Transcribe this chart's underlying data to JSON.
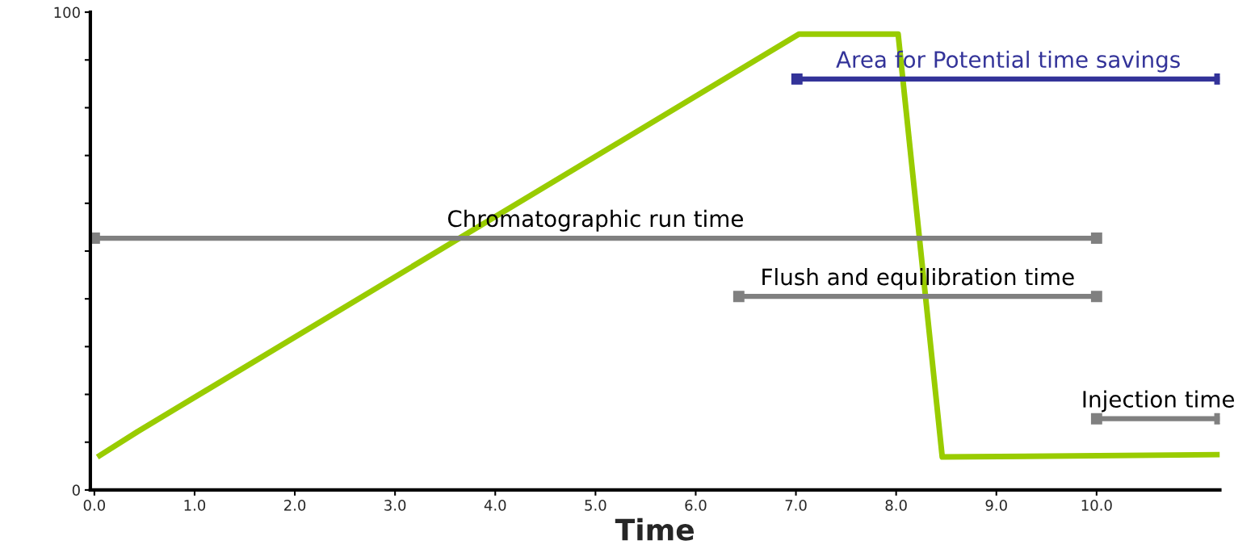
{
  "chart_data": {
    "type": "line",
    "xlabel": "Time",
    "xlim": [
      -0.04,
      11.23
    ],
    "ylim": [
      0,
      100
    ],
    "xticks": [
      {
        "value": 0,
        "label": "0.0"
      },
      {
        "value": 1,
        "label": "1.0"
      },
      {
        "value": 2,
        "label": "2.0"
      },
      {
        "value": 3,
        "label": "3.0"
      },
      {
        "value": 4,
        "label": "4.0"
      },
      {
        "value": 5,
        "label": "5.0"
      },
      {
        "value": 6,
        "label": "6.0"
      },
      {
        "value": 7,
        "label": "7.0"
      },
      {
        "value": 8,
        "label": "8.0"
      },
      {
        "value": 9,
        "label": "9.0"
      },
      {
        "value": 10,
        "label": "10.0"
      }
    ],
    "yticks": [
      0,
      {
        "value": 10,
        "label": null
      },
      {
        "value": 20,
        "label": null
      },
      {
        "value": 30,
        "label": null
      },
      {
        "value": 40,
        "label": null
      },
      {
        "value": 50,
        "label": null
      },
      {
        "value": 60,
        "label": null
      },
      {
        "value": 70,
        "label": null
      },
      {
        "value": 80,
        "label": null
      },
      {
        "value": 90,
        "label": null
      },
      100
    ],
    "grid": false,
    "legend": false,
    "series": [
      {
        "color": "#99cc00",
        "x": [
          0.03,
          0.43,
          7.03,
          8.02,
          8.46,
          11.23
        ],
        "values": [
          6.9,
          12.2,
          95.4,
          95.4,
          6.9,
          7.4
        ],
        "marker": "none"
      },
      {
        "name": "Chromatographic run time",
        "color": "#808080",
        "x": [
          0,
          10
        ],
        "values": [
          52.7,
          52.7
        ],
        "marker": "square"
      },
      {
        "name": "Flush and equilibration time",
        "color": "#808080",
        "x": [
          6.43,
          10
        ],
        "values": [
          40.5,
          40.5
        ],
        "marker": "square"
      },
      {
        "name": "Injection time",
        "color": "#808080",
        "x": [
          10,
          11.23
        ],
        "values": [
          14.9,
          14.9
        ],
        "marker": "square"
      },
      {
        "name": "Area for Potential time savings",
        "color": "#333399",
        "x": [
          7.01,
          11.23
        ],
        "values": [
          86.0,
          86.0
        ],
        "marker": "square"
      }
    ]
  }
}
